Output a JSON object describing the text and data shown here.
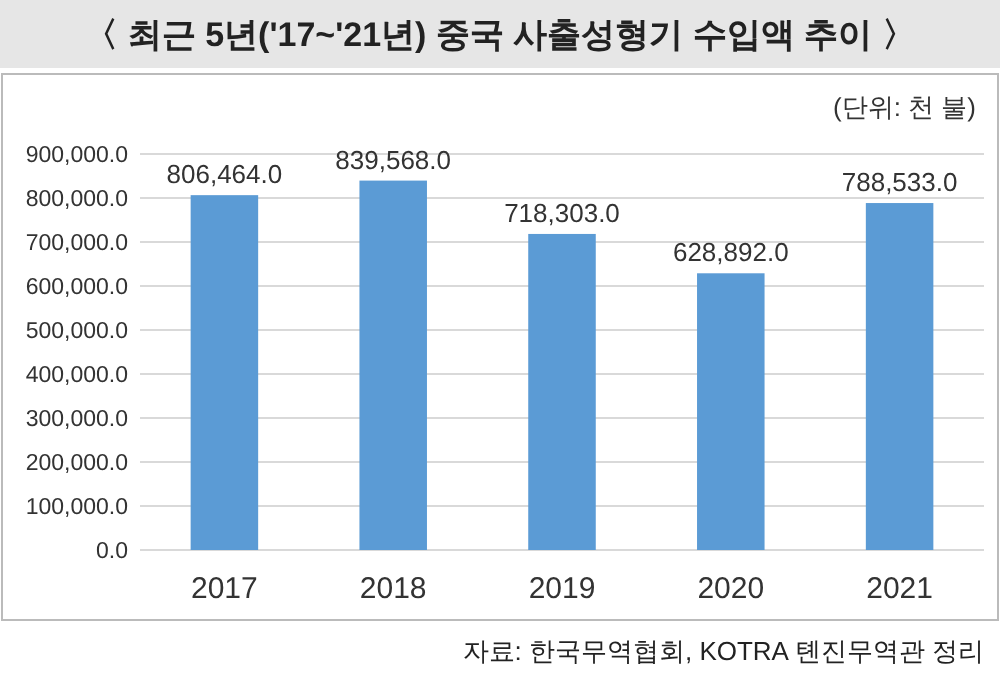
{
  "chart_data": {
    "type": "bar",
    "title": "〈 최근 5년('17~'21년) 중국 사출성형기 수입액 추이 〉",
    "subtitle": "(단위: 천 불)",
    "categories": [
      "2017",
      "2018",
      "2019",
      "2020",
      "2021"
    ],
    "values": [
      806464.0,
      839568.0,
      718303.0,
      628892.0,
      788533.0
    ],
    "value_labels": [
      "806,464.0",
      "839,568.0",
      "718,303.0",
      "628,892.0",
      "788,533.0"
    ],
    "color": "#5b9bd5",
    "ylim": [
      0,
      900000
    ],
    "yticks": [
      {
        "value": 0,
        "label": "0.0"
      },
      {
        "value": 100000,
        "label": "100,000.0"
      },
      {
        "value": 200000,
        "label": "200,000.0"
      },
      {
        "value": 300000,
        "label": "300,000.0"
      },
      {
        "value": 400000,
        "label": "400,000.0"
      },
      {
        "value": 500000,
        "label": "500,000.0"
      },
      {
        "value": 600000,
        "label": "600,000.0"
      },
      {
        "value": 700000,
        "label": "700,000.0"
      },
      {
        "value": 800000,
        "label": "800,000.0"
      },
      {
        "value": 900000,
        "label": "900,000.0"
      }
    ],
    "grid": "y",
    "annotations": [
      "자료: 한국무역협회, KOTRA 톈진무역관 정리"
    ]
  }
}
